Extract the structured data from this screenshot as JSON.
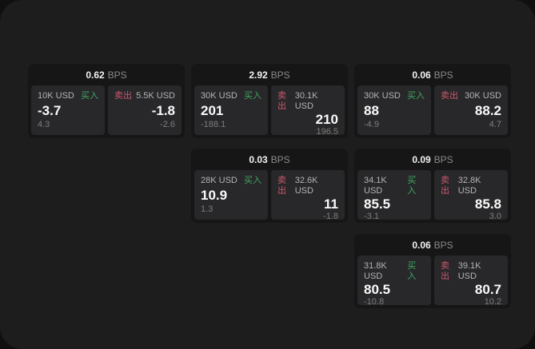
{
  "labels": {
    "bps_unit": "BPS",
    "buy": "买入",
    "sell": "卖出"
  },
  "colors": {
    "buy_green": "#3fa662",
    "sell_red": "#c9586c",
    "panel_bg": "#1d1d1d",
    "card_bg": "#161616",
    "subcard_bg": "#28282a"
  },
  "cards": [
    {
      "bps": "0.62",
      "buy": {
        "amount": "10K USD",
        "price": "-3.7",
        "delta": "4.3"
      },
      "sell": {
        "amount": "5.5K USD",
        "price": "-1.8",
        "delta": "-2.6"
      }
    },
    {
      "bps": "2.92",
      "buy": {
        "amount": "30K USD",
        "price": "201",
        "delta": "-188.1"
      },
      "sell": {
        "amount": "30.1K USD",
        "price": "210",
        "delta": "196.5"
      }
    },
    {
      "bps": "0.06",
      "buy": {
        "amount": "30K USD",
        "price": "88",
        "delta": "-4.9"
      },
      "sell": {
        "amount": "30K USD",
        "price": "88.2",
        "delta": "4.7"
      }
    },
    {
      "bps": "0.03",
      "buy": {
        "amount": "28K USD",
        "price": "10.9",
        "delta": "1.3"
      },
      "sell": {
        "amount": "32.6K USD",
        "price": "11",
        "delta": "-1.8"
      }
    },
    {
      "bps": "0.09",
      "buy": {
        "amount": "34.1K USD",
        "price": "85.5",
        "delta": "-3.1"
      },
      "sell": {
        "amount": "32.8K USD",
        "price": "85.8",
        "delta": "3.0"
      }
    },
    {
      "bps": "0.06",
      "buy": {
        "amount": "31.8K USD",
        "price": "80.5",
        "delta": "-10.8"
      },
      "sell": {
        "amount": "39.1K USD",
        "price": "80.7",
        "delta": "10.2"
      }
    }
  ]
}
